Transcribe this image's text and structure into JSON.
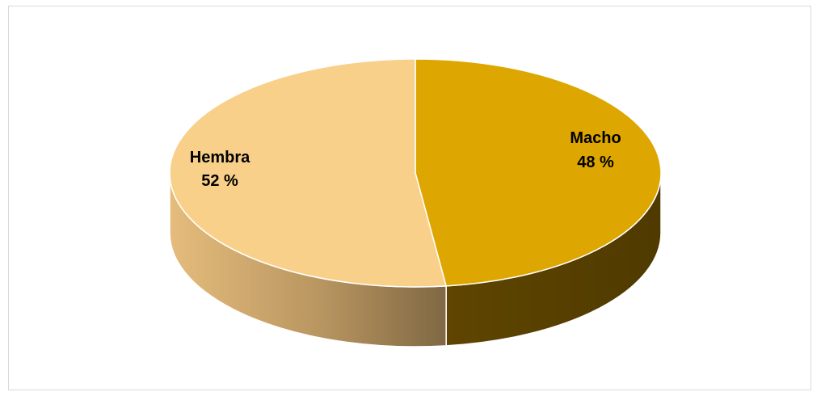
{
  "chart_data": {
    "type": "pie",
    "title": "",
    "slices": [
      {
        "label": "Macho",
        "value": 48,
        "value_label": "48 %",
        "color": "#DDA600",
        "side_color": "#5C4300"
      },
      {
        "label": "Hembra",
        "value": 52,
        "value_label": "52 %",
        "color": "#F9D089",
        "side_color": "#C59B5E"
      }
    ],
    "style": "3d"
  }
}
